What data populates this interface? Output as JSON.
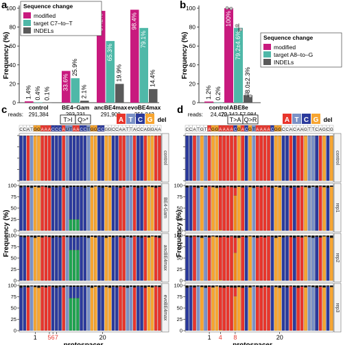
{
  "panels": {
    "a": "a",
    "b": "b",
    "c": "c",
    "d": "d"
  },
  "colors": {
    "modified": "#c81a7e",
    "target": "#4fb8a8",
    "indels": "#5a5a5a",
    "A": "#e8352c",
    "T": "#7b91c6",
    "C": "#2b3a9c",
    "G": "#f7a531",
    "del": "#111111",
    "stack_green": "#1fa350",
    "stack_orange": "#f08a1a"
  },
  "chart_data": [
    {
      "type": "bar",
      "panel": "a",
      "ylabel": "Frequency (%)",
      "ylim": [
        0,
        100
      ],
      "yticks": [
        0,
        20,
        40,
        60,
        80,
        100
      ],
      "legend_title": "Sequence change",
      "legend_position": "top-left",
      "categories": [
        "control",
        "BE4–Gam",
        "ancBE4max",
        "evoBE4max"
      ],
      "reads_label": "reads:",
      "reads": [
        "291,384",
        "293,231",
        "291,908",
        "351,843"
      ],
      "series": [
        {
          "name": "modified",
          "values": [
            1.4,
            33.6,
            97.2,
            98.4
          ],
          "labels": [
            "1.4%",
            "33.6%",
            "97.2%",
            "98.4%"
          ]
        },
        {
          "name": "target C7–to–T",
          "values": [
            0.4,
            25.9,
            65.3,
            79.1
          ],
          "labels": [
            "0.4%",
            "25.9%",
            "65.3%",
            "79.1%"
          ]
        },
        {
          "name": "INDELs",
          "values": [
            0.1,
            2.1,
            19.9,
            14.4
          ],
          "labels": [
            "0.1%",
            "2.1%",
            "19.9%",
            "14.4%"
          ]
        }
      ]
    },
    {
      "type": "bar",
      "panel": "b",
      "ylabel": "Frequency (%)",
      "ylim": [
        0,
        100
      ],
      "yticks": [
        0,
        20,
        40,
        60,
        80,
        100
      ],
      "legend_title": "Sequence change",
      "legend_position": "right",
      "categories": [
        "control",
        "ABE8e"
      ],
      "reads_label": "reads:",
      "reads": [
        "24,470",
        "22,342-57,984"
      ],
      "series": [
        {
          "name": "modified",
          "values": [
            1.2,
            100
          ],
          "labels": [
            "1.2%",
            "100%"
          ]
        },
        {
          "name": "target A8–to–G",
          "values": [
            0.2,
            79.2
          ],
          "labels": [
            "0.2%",
            "79.2±4.6%"
          ]
        },
        {
          "name": "INDELs",
          "values": [
            0.1,
            8.0
          ],
          "labels": [
            "0.1%",
            "8.0±2.3%"
          ]
        }
      ]
    },
    {
      "type": "bar",
      "panel": "c",
      "stacked": true,
      "ylabel": "Frequency (%)",
      "xlabel": "protospacer",
      "yticks": [
        0,
        25,
        50,
        75,
        100
      ],
      "sequence": "CCATGGAAACCCAUTAACCTGGCCGGCCAATTACCAGGAA",
      "conversion_label": "T>I",
      "conversion_label_2": "Q>*",
      "nuc_legend": [
        "A",
        "T",
        "C",
        "G",
        "del"
      ],
      "facets": [
        "control",
        "BE4-Gam",
        "ancBE4max",
        "evoBE4max"
      ],
      "xticks": [
        "1",
        "5",
        "6",
        "7",
        "20"
      ],
      "highlight_ticks": [
        "5",
        "6",
        "7"
      ]
    },
    {
      "type": "bar",
      "panel": "d",
      "stacked": true,
      "ylabel": "Frequency (%)",
      "xlabel": "protospacer",
      "yticks": [
        0,
        25,
        50,
        75,
        100
      ],
      "sequence": "CCATGTAGGAAAACGACGTAAAACGGCCACAAGTTCAGCG",
      "conversion_label": "T>A",
      "conversion_label_2": "Q>R",
      "nuc_legend": [
        "A",
        "T",
        "C",
        "G",
        "del"
      ],
      "facets": [
        "control",
        "rep1",
        "rep2",
        "rep3"
      ],
      "xticks": [
        "1",
        "4",
        "8",
        "20"
      ],
      "highlight_ticks": [
        "4",
        "8"
      ]
    }
  ]
}
